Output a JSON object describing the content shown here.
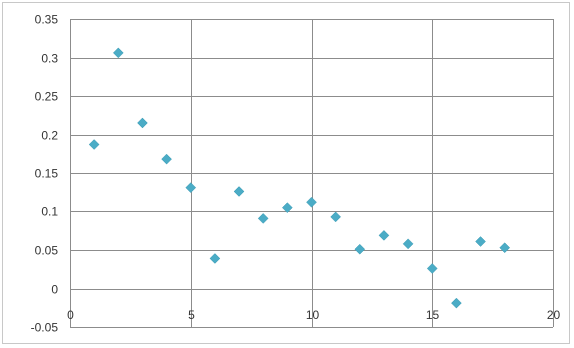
{
  "chart_data": {
    "type": "scatter",
    "title": "",
    "xlabel": "",
    "ylabel": "",
    "xlim": [
      0,
      20
    ],
    "ylim": [
      -0.05,
      0.35
    ],
    "x_ticks": [
      0,
      5,
      10,
      15,
      20
    ],
    "x_tick_labels": [
      "0",
      "5",
      "10",
      "15",
      "20"
    ],
    "y_ticks": [
      -0.05,
      0,
      0.05,
      0.1,
      0.15,
      0.2,
      0.25,
      0.3,
      0.35
    ],
    "y_tick_labels": [
      "-0.05",
      "0",
      "0.05",
      "0.1",
      "0.15",
      "0.2",
      "0.25",
      "0.3",
      "0.35"
    ],
    "grid": true,
    "legend": "none",
    "marker": "diamond",
    "color": "#4bacc6",
    "series": [
      {
        "x": [
          1,
          2,
          3,
          4,
          5,
          6,
          7,
          8,
          9,
          10,
          11,
          12,
          13,
          14,
          15,
          16,
          17,
          18
        ],
        "y": [
          0.187,
          0.306,
          0.215,
          0.168,
          0.131,
          0.039,
          0.126,
          0.091,
          0.105,
          0.112,
          0.093,
          0.051,
          0.069,
          0.058,
          0.026,
          -0.019,
          0.061,
          0.053
        ]
      }
    ]
  }
}
